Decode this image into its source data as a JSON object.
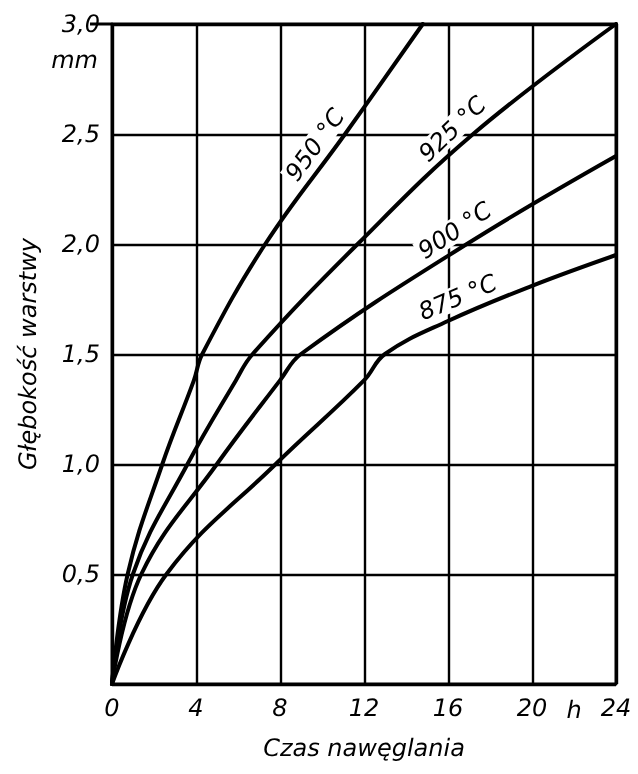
{
  "chart_data": {
    "type": "line",
    "xlabel": "Czas nawęglania",
    "ylabel": "Głębokość warstwy",
    "annotations": [
      "mm",
      "h"
    ],
    "xlim": [
      0,
      24
    ],
    "xticks": [
      0,
      4,
      8,
      12,
      16,
      20,
      24
    ],
    "ylim": [
      0,
      3
    ],
    "yticks": [
      {
        "value": 0,
        "label": null
      },
      {
        "value": 0.5,
        "label": "0,5"
      },
      {
        "value": 1,
        "label": "1,0"
      },
      {
        "value": 1.5,
        "label": "1,5"
      },
      {
        "value": 2,
        "label": "2,0"
      },
      {
        "value": 2.5,
        "label": "2,5"
      },
      {
        "value": 3,
        "label": "3,0"
      }
    ],
    "grid": true,
    "legend": false,
    "marker": "none",
    "line_style": "solid",
    "series": [
      {
        "name": "950 °C",
        "color": "#000000",
        "x": [
          0,
          0.75,
          2.4,
          3.9,
          4.3,
          7.3,
          11.1,
          14.8
        ],
        "values": [
          0,
          0.5,
          1.0,
          1.38,
          1.5,
          2.0,
          2.5,
          3.0
        ]
      },
      {
        "name": "925 °C",
        "color": "#000000",
        "x": [
          0,
          1.0,
          3.6,
          5.9,
          6.7,
          11.7,
          17.2,
          24
        ],
        "values": [
          0,
          0.5,
          1.0,
          1.38,
          1.5,
          2.0,
          2.5,
          3.0
        ]
      },
      {
        "name": "900 °C",
        "color": "#000000",
        "x": [
          0,
          1.4,
          5.0,
          8.0,
          9.0,
          16.9,
          24
        ],
        "values": [
          0,
          0.5,
          1.0,
          1.38,
          1.5,
          2.0,
          2.4
        ]
      },
      {
        "name": "875 °C",
        "color": "#000000",
        "x": [
          0,
          2.6,
          7.8,
          12,
          13,
          16,
          20,
          24
        ],
        "values": [
          0,
          0.5,
          1.0,
          1.38,
          1.5,
          1.65,
          1.81,
          1.95
        ]
      }
    ]
  }
}
